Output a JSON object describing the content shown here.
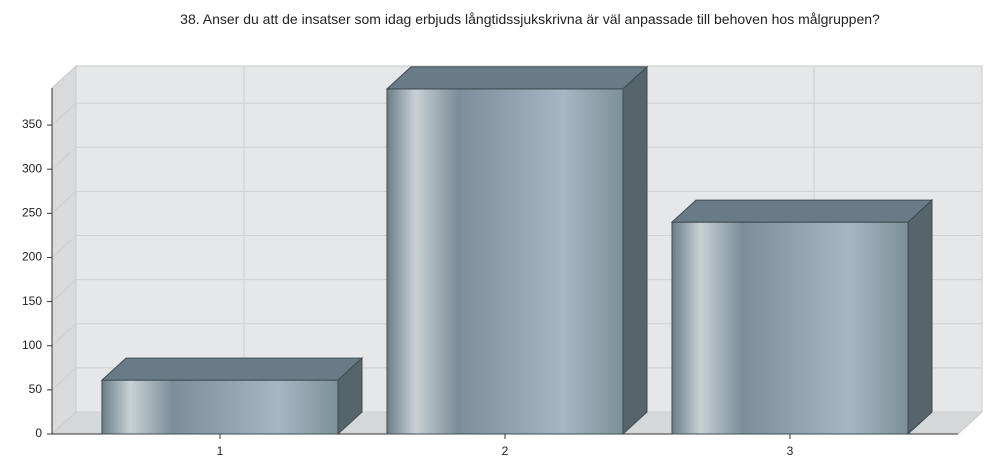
{
  "chart_data": {
    "type": "bar",
    "title": "38. Anser du att de insatser som idag erbjuds långtidssjukskrivna är väl anpassade till behoven hos målgruppen?",
    "categories": [
      "1",
      "2",
      "3"
    ],
    "values": [
      61,
      391,
      240
    ],
    "color": "#8a9ca7",
    "ylim": [
      0,
      392
    ],
    "yticks": [
      0,
      50,
      100,
      150,
      200,
      250,
      300,
      350
    ],
    "grid": true
  }
}
